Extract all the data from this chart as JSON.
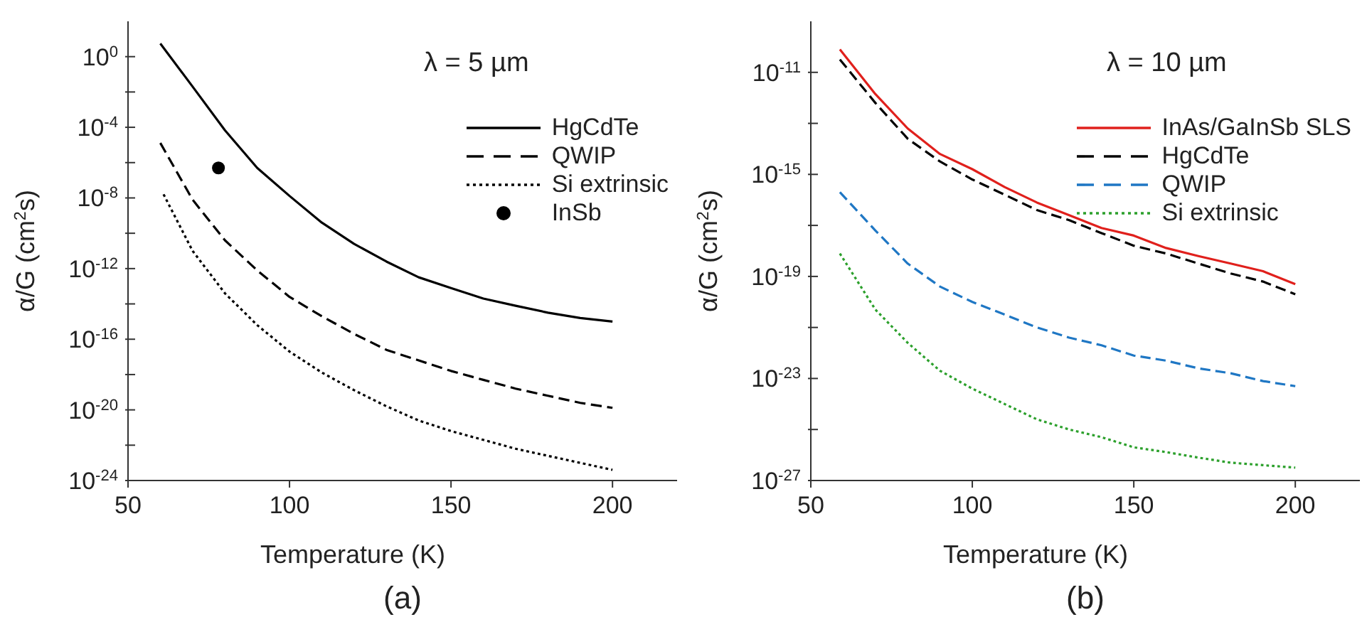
{
  "chart_data": [
    {
      "type": "line",
      "title": "(a)",
      "xlabel": "Temperature (K)",
      "ylabel": "α/G (cm$^{2}$s)",
      "annotations": [
        "λ = 5 µm"
      ],
      "log": "y",
      "legend": "top right",
      "xlim": [
        50,
        220
      ],
      "xticks": [
        50,
        100,
        150,
        200
      ],
      "ylim": [
        1e-24,
        100
      ],
      "yticks": [
        {
          "value": 1e-24,
          "label": "10$^{-24}$"
        },
        {
          "value": 1e-22,
          "label": null
        },
        {
          "value": 1e-20,
          "label": "10$^{-20}$"
        },
        {
          "value": 1e-18,
          "label": null
        },
        {
          "value": 1e-16,
          "label": "10$^{-16}$"
        },
        {
          "value": 1e-14,
          "label": null
        },
        {
          "value": 1e-12,
          "label": "10$^{-12}$"
        },
        {
          "value": 1e-10,
          "label": null
        },
        {
          "value": 1e-08,
          "label": "10$^{-8}$"
        },
        {
          "value": 1e-06,
          "label": null
        },
        {
          "value": 0.0001,
          "label": "10$^{-4}$"
        },
        {
          "value": 0.01,
          "label": null
        },
        {
          "value": 1,
          "label": "10$^{0}$"
        }
      ],
      "series": [
        {
          "name": "HgCdTe",
          "color": "#000000",
          "line_style": "solid",
          "x": [
            60,
            70,
            80,
            90,
            100,
            110,
            120,
            130,
            140,
            150,
            160,
            170,
            180,
            190,
            200
          ],
          "values": [
            5.5,
            0.02,
            6.8e-05,
            5e-07,
            1.3e-08,
            4e-10,
            2.5e-11,
            2.5e-12,
            3.2e-13,
            7.9e-14,
            2e-14,
            7.9e-15,
            3.2e-15,
            1.6e-15,
            1e-15
          ]
        },
        {
          "name": "QWIP",
          "color": "#000000",
          "line_style": "dashed",
          "x": [
            60,
            70,
            80,
            90,
            100,
            110,
            120,
            130,
            140,
            150,
            160,
            170,
            180,
            190,
            200
          ],
          "values": [
            1.3e-05,
            7.9e-09,
            4e-11,
            7.9e-13,
            2.5e-14,
            2e-15,
            2e-16,
            2.5e-17,
            6.3e-18,
            1.6e-18,
            5e-19,
            1.6e-19,
            6.3e-20,
            2.5e-20,
            1.3e-20
          ]
        },
        {
          "name": "Si extrinsic",
          "color": "#000000",
          "line_style": "dotted",
          "x": [
            61,
            70,
            80,
            90,
            100,
            110,
            120,
            130,
            140,
            150,
            160,
            170,
            180,
            190,
            200
          ],
          "values": [
            1.6e-08,
            1e-11,
            4e-14,
            6.3e-16,
            2e-17,
            1.3e-18,
            1.3e-19,
            1.6e-20,
            2.5e-21,
            6.3e-22,
            2e-22,
            6.3e-23,
            2.5e-23,
            1e-23,
            4e-24
          ]
        },
        {
          "name": "InSb",
          "type": "scatter",
          "marker": "circle",
          "color": "#000000",
          "x": [
            78
          ],
          "values": [
            5e-07
          ]
        }
      ]
    },
    {
      "type": "line",
      "title": "(b)",
      "xlabel": "Temperature (K)",
      "ylabel": "α/G (cm$^{2}$s)",
      "annotations": [
        "λ = 10 µm"
      ],
      "log": "y",
      "legend": "top right",
      "xlim": [
        50,
        220
      ],
      "xticks": [
        50,
        100,
        150,
        200
      ],
      "ylim": [
        1e-27,
        1e-09
      ],
      "yticks": [
        {
          "value": 1e-27,
          "label": "10$^{-27}$"
        },
        {
          "value": 1e-25,
          "label": null
        },
        {
          "value": 1e-23,
          "label": "10$^{-23}$"
        },
        {
          "value": 1e-21,
          "label": null
        },
        {
          "value": 1e-19,
          "label": "10$^{-19}$"
        },
        {
          "value": 1e-17,
          "label": null
        },
        {
          "value": 1e-15,
          "label": "10$^{-15}$"
        },
        {
          "value": 1e-13,
          "label": null
        },
        {
          "value": 1e-11,
          "label": "10$^{-11}$"
        }
      ],
      "series": [
        {
          "name": "InAs/GaInSb SLS",
          "color": "#e0201c",
          "line_style": "solid",
          "x": [
            59,
            70,
            80,
            90,
            100,
            110,
            120,
            130,
            140,
            150,
            160,
            170,
            180,
            190,
            200
          ],
          "values": [
            7.9e-11,
            1.4e-12,
            6.3e-14,
            6.3e-15,
            1.6e-15,
            3.2e-16,
            7.9e-17,
            2.5e-17,
            7.9e-18,
            4e-18,
            1.3e-18,
            6.3e-19,
            3.2e-19,
            1.6e-19,
            5e-20
          ]
        },
        {
          "name": "HgCdTe",
          "color": "#000000",
          "line_style": "dashed",
          "x": [
            59,
            70,
            80,
            90,
            100,
            110,
            120,
            130,
            140,
            150,
            160,
            170,
            180,
            190,
            200
          ],
          "values": [
            3.2e-11,
            6.3e-13,
            2.5e-14,
            3.2e-15,
            6.3e-16,
            1.6e-16,
            4e-17,
            1.6e-17,
            5e-18,
            1.6e-18,
            7.9e-19,
            3.2e-19,
            1.3e-19,
            6.3e-20,
            2e-20
          ]
        },
        {
          "name": "QWIP",
          "color": "#1f77c4",
          "line_style": "dashed",
          "x": [
            59,
            70,
            80,
            90,
            100,
            110,
            120,
            130,
            140,
            150,
            160,
            170,
            180,
            190,
            200
          ],
          "values": [
            2e-16,
            6.3e-18,
            3.2e-19,
            4e-20,
            1e-20,
            3.2e-21,
            1e-21,
            4e-22,
            2e-22,
            7.9e-23,
            5e-23,
            2.5e-23,
            1.6e-23,
            7.9e-24,
            5e-24
          ]
        },
        {
          "name": "Si extrinsic",
          "color": "#2ca02c",
          "line_style": "dotted",
          "x": [
            59,
            70,
            80,
            90,
            100,
            110,
            120,
            130,
            140,
            150,
            160,
            170,
            180,
            190,
            200
          ],
          "values": [
            7.9e-19,
            5e-21,
            2.5e-22,
            2e-23,
            4e-24,
            1e-24,
            2.5e-25,
            1e-25,
            5e-26,
            2e-26,
            1.3e-26,
            7.9e-27,
            5e-27,
            4e-27,
            3.2e-27
          ]
        }
      ]
    }
  ]
}
